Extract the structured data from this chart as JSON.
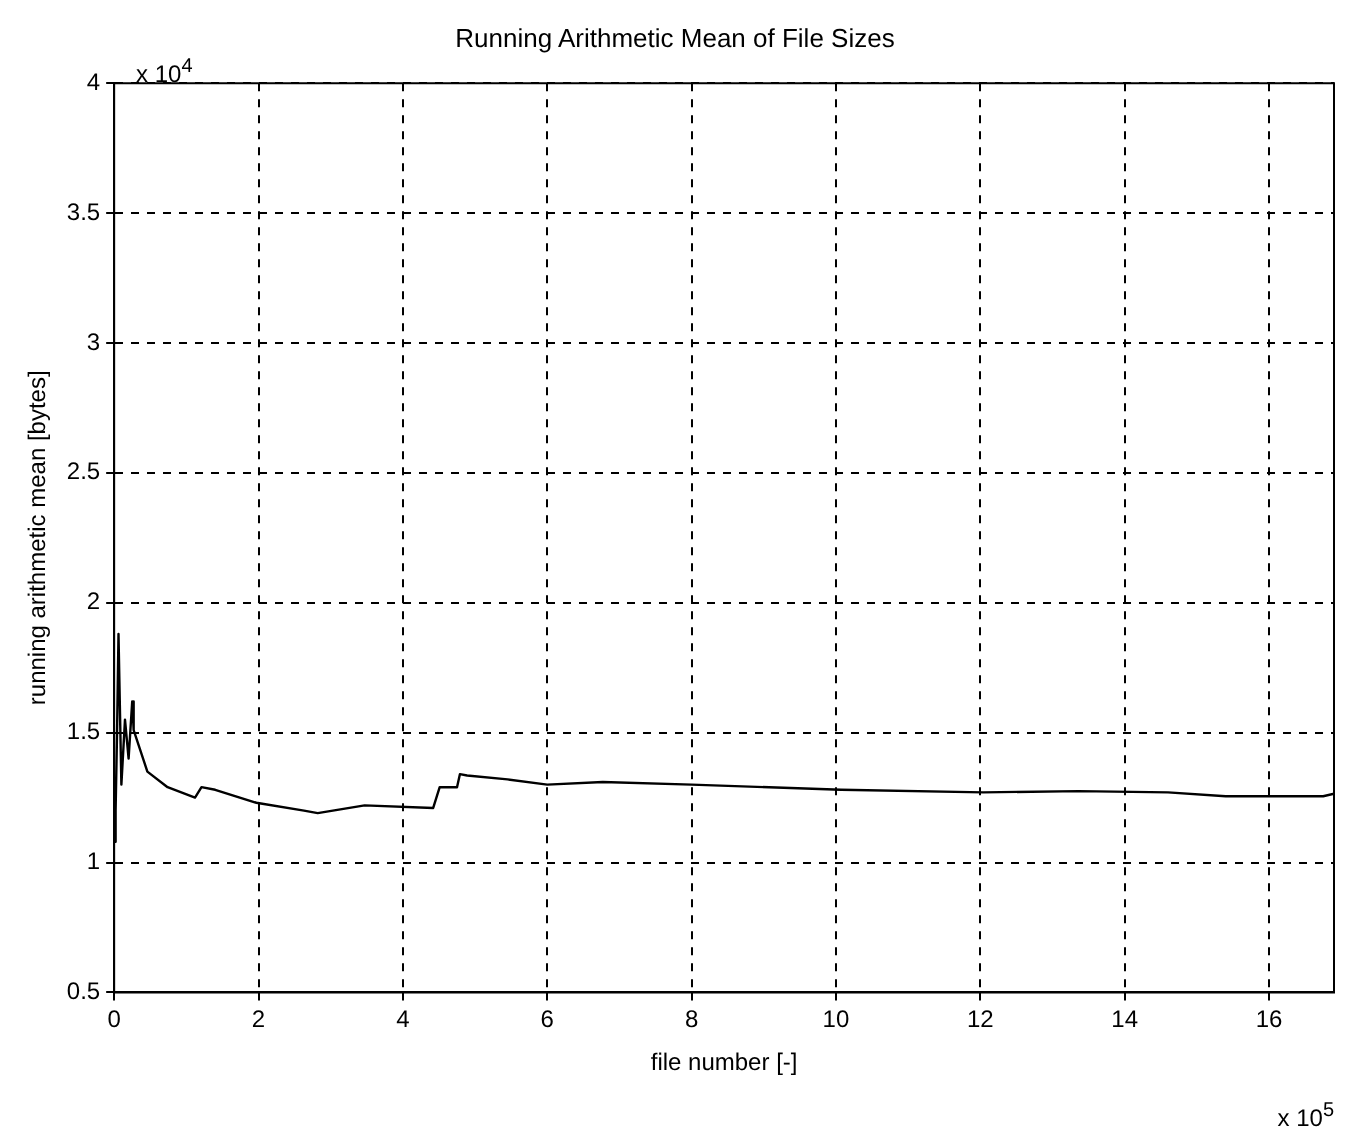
{
  "chart_data": {
    "type": "line",
    "title": "Running Arithmetic Mean of File Sizes",
    "xlabel": "file number [-]",
    "ylabel": "running arithmetic mean [bytes]",
    "annotations": [
      "x 10$^{4}$",
      "x 10$^{5}$"
    ],
    "x": [
      0,
      0.02,
      0.04,
      0.06,
      0.1,
      0.15,
      0.2,
      0.25,
      0.27,
      0.46,
      0.74,
      1.12,
      1.21,
      1.4,
      1.97,
      2.63,
      2.82,
      3.47,
      4.42,
      4.51,
      4.75,
      4.79,
      4.89,
      5.45,
      6.0,
      6.77,
      8.0,
      10.07,
      12.04,
      13.36,
      14.6,
      15.4,
      16.75,
      16.9
    ],
    "series": [
      {
        "color": "#000000",
        "values": [
          1.08,
          1.2,
          1.5,
          1.88,
          1.3,
          1.55,
          1.4,
          1.62,
          1.51,
          1.35,
          1.29,
          1.25,
          1.29,
          1.28,
          1.23,
          1.2,
          1.19,
          1.22,
          1.21,
          1.29,
          1.29,
          1.34,
          1.335,
          1.32,
          1.3,
          1.31,
          1.3,
          1.28,
          1.27,
          1.275,
          1.27,
          1.255,
          1.255,
          1.265
        ]
      }
    ],
    "xlim": [
      0,
      16.9
    ],
    "xticks": [
      0,
      2,
      4,
      6,
      8,
      10,
      12,
      14,
      16
    ],
    "ylim": [
      0.5,
      4
    ],
    "yticks": [
      0.5,
      1,
      1.5,
      2,
      2.5,
      3,
      3.5,
      4
    ],
    "grid": true,
    "legend": false,
    "marker": "none",
    "line_style": "solid"
  }
}
